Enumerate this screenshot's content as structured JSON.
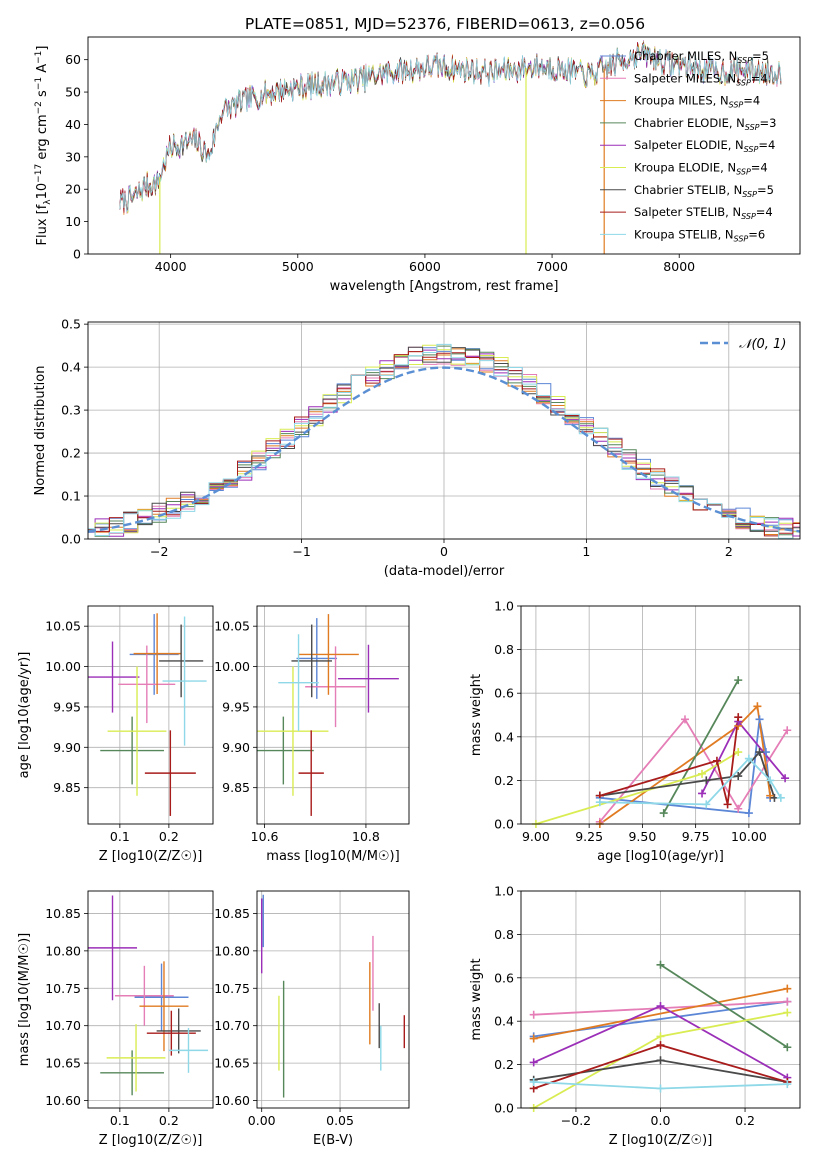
{
  "figure": {
    "title": "PLATE=0851, MJD=52376, FIBERID=0613, z=0.056"
  },
  "models": [
    {
      "name": "Chabrier MILES",
      "nssp": 5,
      "color": "#5c86d6"
    },
    {
      "name": "Salpeter MILES",
      "nssp": 4,
      "color": "#e57db6"
    },
    {
      "name": "Kroupa MILES",
      "nssp": 4,
      "color": "#e07b22"
    },
    {
      "name": "Chabrier ELODIE",
      "nssp": 3,
      "color": "#56875a"
    },
    {
      "name": "Salpeter ELODIE",
      "nssp": 4,
      "color": "#9b2fb8"
    },
    {
      "name": "Kroupa ELODIE",
      "nssp": 4,
      "color": "#d9ec52"
    },
    {
      "name": "Chabrier STELIB",
      "nssp": 5,
      "color": "#4a4a4a"
    },
    {
      "name": "Salpeter STELIB",
      "nssp": 4,
      "color": "#a81c1c"
    },
    {
      "name": "Kroupa STELIB",
      "nssp": 6,
      "color": "#8ed8e8"
    }
  ],
  "chart_data": [
    {
      "id": "spectrum",
      "type": "line",
      "title": "PLATE=0851, MJD=52376, FIBERID=0613, z=0.056",
      "xlabel": "wavelength [Angstrom, rest frame]",
      "ylabel": "Flux [f_λ 10^-17 erg cm^-2 s^-1 A^-1]",
      "xlim": [
        3350,
        8950
      ],
      "ylim": [
        0,
        67
      ],
      "xticks": [
        4000,
        5000,
        6000,
        7000,
        8000
      ],
      "yticks": [
        0,
        10,
        20,
        30,
        40,
        50,
        60
      ],
      "grid": false,
      "legend": "right",
      "envelope": {
        "x": [
          3600,
          3700,
          3800,
          3900,
          3950,
          4000,
          4100,
          4200,
          4300,
          4400,
          4500,
          4700,
          4900,
          5100,
          5300,
          5500,
          5700,
          5900,
          6100,
          6300,
          6500,
          6700,
          6900,
          7100,
          7300,
          7500,
          7700,
          7900,
          8100,
          8300,
          8500,
          8700,
          8800
        ],
        "y": [
          16,
          17,
          21,
          22,
          28,
          33,
          34,
          35,
          30,
          44,
          46,
          49,
          51,
          52,
          53,
          54,
          56,
          57,
          58,
          57,
          56,
          57,
          58,
          57,
          55,
          59,
          62,
          59,
          58,
          56,
          57,
          56,
          56
        ]
      },
      "dips": [
        {
          "x": 3915,
          "y": 0,
          "series": "Kroupa ELODIE"
        },
        {
          "x": 6795,
          "y": 0,
          "series": "Kroupa ELODIE"
        },
        {
          "x": 7410,
          "y": 0,
          "series": "Kroupa MILES"
        }
      ]
    },
    {
      "id": "residuals",
      "type": "line",
      "xlabel": "(data-model)/error",
      "ylabel": "Normed distribution",
      "xlim": [
        -2.5,
        2.5
      ],
      "ylim": [
        0,
        0.505
      ],
      "xticks": [
        -2,
        -1,
        0,
        1,
        2
      ],
      "yticks": [
        0.0,
        0.1,
        0.2,
        0.3,
        0.4,
        0.5
      ],
      "grid": true,
      "legend": "top-right",
      "reference_label": "𝒩(0, 1)",
      "reference_color": "#5b8fd4",
      "bin_width": 0.1
    },
    {
      "id": "age-vs-z",
      "type": "scatter",
      "xlabel": "Z [log10(Z/Z☉)]",
      "ylabel": "age [log10(age/yr)]",
      "xlim": [
        0.035,
        0.29
      ],
      "ylim": [
        9.805,
        10.075
      ],
      "xticks": [
        0.1,
        0.2
      ],
      "yticks": [
        9.85,
        9.9,
        9.95,
        10.0,
        10.05
      ],
      "grid": true,
      "points": [
        {
          "series": "Chabrier MILES",
          "x": 0.17,
          "y": 10.015,
          "xerr": 0.05,
          "yerr": 0.05
        },
        {
          "series": "Salpeter MILES",
          "x": 0.155,
          "y": 9.978,
          "xerr": 0.058,
          "yerr": 0.048
        },
        {
          "series": "Kroupa MILES",
          "x": 0.176,
          "y": 10.016,
          "xerr": 0.048,
          "yerr": 0.05
        },
        {
          "series": "Chabrier ELODIE",
          "x": 0.125,
          "y": 9.896,
          "xerr": 0.065,
          "yerr": 0.042
        },
        {
          "series": "Salpeter ELODIE",
          "x": 0.085,
          "y": 9.987,
          "xerr": 0.055,
          "yerr": 0.044
        },
        {
          "series": "Kroupa ELODIE",
          "x": 0.135,
          "y": 9.92,
          "xerr": 0.06,
          "yerr": 0.08
        },
        {
          "series": "Chabrier STELIB",
          "x": 0.225,
          "y": 10.007,
          "xerr": 0.045,
          "yerr": 0.045
        },
        {
          "series": "Salpeter STELIB",
          "x": 0.203,
          "y": 9.868,
          "xerr": 0.052,
          "yerr": 0.053
        },
        {
          "series": "Kroupa STELIB",
          "x": 0.232,
          "y": 9.982,
          "xerr": 0.045,
          "yerr": 0.08
        }
      ]
    },
    {
      "id": "age-vs-mass",
      "type": "scatter",
      "xlabel": "mass [log10(M/M☉)]",
      "ylabel": "",
      "xlim": [
        10.585,
        10.885
      ],
      "ylim": [
        9.805,
        10.075
      ],
      "xticks": [
        10.6,
        10.8
      ],
      "yticks": [
        9.85,
        9.9,
        9.95,
        10.0,
        10.05
      ],
      "grid": true,
      "points": [
        {
          "series": "Chabrier MILES",
          "x": 10.703,
          "y": 10.01,
          "xerr": 0.04,
          "yerr": 0.05
        },
        {
          "series": "Salpeter MILES",
          "x": 10.74,
          "y": 9.975,
          "xerr": 0.06,
          "yerr": 0.05
        },
        {
          "series": "Kroupa MILES",
          "x": 10.726,
          "y": 10.015,
          "xerr": 0.06,
          "yerr": 0.05
        },
        {
          "series": "Chabrier ELODIE",
          "x": 10.637,
          "y": 9.896,
          "xerr": 0.06,
          "yerr": 0.042
        },
        {
          "series": "Salpeter ELODIE",
          "x": 10.805,
          "y": 9.985,
          "xerr": 0.06,
          "yerr": 0.042
        },
        {
          "series": "Kroupa ELODIE",
          "x": 10.656,
          "y": 9.92,
          "xerr": 0.07,
          "yerr": 0.08
        },
        {
          "series": "Chabrier STELIB",
          "x": 10.693,
          "y": 10.007,
          "xerr": 0.04,
          "yerr": 0.045
        },
        {
          "series": "Salpeter STELIB",
          "x": 10.692,
          "y": 9.868,
          "xerr": 0.025,
          "yerr": 0.053
        },
        {
          "series": "Kroupa STELIB",
          "x": 10.667,
          "y": 9.98,
          "xerr": 0.04,
          "yerr": 0.06
        }
      ]
    },
    {
      "id": "weight-vs-age",
      "type": "line",
      "xlabel": "age [log10(age/yr)]",
      "ylabel": "mass weight",
      "xlim": [
        8.93,
        10.24
      ],
      "ylim": [
        0,
        1
      ],
      "xticks": [
        9.0,
        9.25,
        9.5,
        9.75,
        10.0
      ],
      "yticks": [
        0.0,
        0.2,
        0.4,
        0.6,
        0.8,
        1.0
      ],
      "grid": true,
      "series": [
        {
          "name": "Chabrier MILES",
          "x": [
            9.3,
            10.0,
            10.05,
            10.08,
            10.1
          ],
          "y": [
            0.12,
            0.05,
            0.48,
            0.33,
            0.12
          ]
        },
        {
          "name": "Salpeter MILES",
          "x": [
            9.3,
            9.7,
            9.95,
            10.18
          ],
          "y": [
            0.01,
            0.48,
            0.07,
            0.43
          ]
        },
        {
          "name": "Kroupa MILES",
          "x": [
            9.3,
            9.95,
            10.04,
            10.1
          ],
          "y": [
            0.0,
            0.45,
            0.54,
            0.13
          ]
        },
        {
          "name": "Chabrier ELODIE",
          "x": [
            9.6,
            9.95
          ],
          "y": [
            0.05,
            0.66
          ]
        },
        {
          "name": "Salpeter ELODIE",
          "x": [
            9.78,
            9.95,
            10.17
          ],
          "y": [
            0.14,
            0.47,
            0.21
          ]
        },
        {
          "name": "Kroupa ELODIE",
          "x": [
            9.0,
            9.78,
            9.95
          ],
          "y": [
            0.0,
            0.23,
            0.33
          ]
        },
        {
          "name": "Chabrier STELIB",
          "x": [
            9.3,
            9.8,
            9.95,
            10.05,
            10.12
          ],
          "y": [
            0.13,
            0.2,
            0.22,
            0.33,
            0.12
          ]
        },
        {
          "name": "Salpeter STELIB",
          "x": [
            9.3,
            9.85,
            9.9,
            9.95
          ],
          "y": [
            0.13,
            0.29,
            0.09,
            0.49
          ]
        },
        {
          "name": "Kroupa STELIB",
          "x": [
            9.3,
            9.8,
            10.0,
            10.1,
            10.15
          ],
          "y": [
            0.1,
            0.09,
            0.3,
            0.2,
            0.12
          ]
        }
      ]
    },
    {
      "id": "mass-vs-z",
      "type": "scatter",
      "xlabel": "Z [log10(Z/Z☉)]",
      "ylabel": "mass [log10(M/M☉)]",
      "xlim": [
        0.035,
        0.29
      ],
      "ylim": [
        10.59,
        10.88
      ],
      "xticks": [
        0.1,
        0.2
      ],
      "yticks": [
        10.6,
        10.65,
        10.7,
        10.75,
        10.8,
        10.85
      ],
      "grid": true,
      "points": [
        {
          "series": "Chabrier MILES",
          "x": 0.185,
          "y": 10.738,
          "xerr": 0.055,
          "yerr": 0.045
        },
        {
          "series": "Salpeter MILES",
          "x": 0.15,
          "y": 10.74,
          "xerr": 0.06,
          "yerr": 0.04
        },
        {
          "series": "Kroupa MILES",
          "x": 0.19,
          "y": 10.726,
          "xerr": 0.05,
          "yerr": 0.06
        },
        {
          "series": "Chabrier ELODIE",
          "x": 0.125,
          "y": 10.637,
          "xerr": 0.065,
          "yerr": 0.03
        },
        {
          "series": "Salpeter ELODIE",
          "x": 0.085,
          "y": 10.804,
          "xerr": 0.05,
          "yerr": 0.07
        },
        {
          "series": "Kroupa ELODIE",
          "x": 0.133,
          "y": 10.657,
          "xerr": 0.06,
          "yerr": 0.045
        },
        {
          "series": "Chabrier STELIB",
          "x": 0.22,
          "y": 10.693,
          "xerr": 0.045,
          "yerr": 0.03
        },
        {
          "series": "Salpeter STELIB",
          "x": 0.205,
          "y": 10.69,
          "xerr": 0.05,
          "yerr": 0.03
        },
        {
          "series": "Kroupa STELIB",
          "x": 0.24,
          "y": 10.667,
          "xerr": 0.04,
          "yerr": 0.03
        }
      ]
    },
    {
      "id": "mass-vs-ebv",
      "type": "scatter",
      "xlabel": "E(B-V)",
      "ylabel": "",
      "xlim": [
        -0.003,
        0.094
      ],
      "ylim": [
        10.59,
        10.88
      ],
      "xticks": [
        0.0,
        0.05
      ],
      "yticks": [
        10.6,
        10.65,
        10.7,
        10.75,
        10.8,
        10.85
      ],
      "grid": true,
      "points": [
        {
          "series": "Chabrier MILES",
          "x": 0.001,
          "y": 10.84,
          "xerr": 0,
          "yerr": 0.035
        },
        {
          "series": "Salpeter MILES",
          "x": 0.071,
          "y": 10.77,
          "xerr": 0,
          "yerr": 0.05
        },
        {
          "series": "Kroupa MILES",
          "x": 0.069,
          "y": 10.73,
          "xerr": 0,
          "yerr": 0.055
        },
        {
          "series": "Chabrier ELODIE",
          "x": 0.014,
          "y": 10.682,
          "xerr": 0,
          "yerr": 0.078
        },
        {
          "series": "Salpeter ELODIE",
          "x": 0.0,
          "y": 10.82,
          "xerr": 0,
          "yerr": 0.05
        },
        {
          "series": "Kroupa ELODIE",
          "x": 0.011,
          "y": 10.69,
          "xerr": 0,
          "yerr": 0.05
        },
        {
          "series": "Chabrier STELIB",
          "x": 0.075,
          "y": 10.7,
          "xerr": 0,
          "yerr": 0.03
        },
        {
          "series": "Salpeter STELIB",
          "x": 0.091,
          "y": 10.692,
          "xerr": 0,
          "yerr": 0.022
        },
        {
          "series": "Kroupa STELIB",
          "x": 0.076,
          "y": 10.67,
          "xerr": 0,
          "yerr": 0.03
        }
      ]
    },
    {
      "id": "weight-vs-z",
      "type": "line",
      "xlabel": "Z [log10(Z/Z☉)]",
      "ylabel": "mass weight",
      "xlim": [
        -0.33,
        0.33
      ],
      "ylim": [
        0,
        1
      ],
      "xticks": [
        -0.2,
        0.0,
        0.2
      ],
      "yticks": [
        0.0,
        0.2,
        0.4,
        0.6,
        0.8,
        1.0
      ],
      "grid": true,
      "series": [
        {
          "name": "Chabrier MILES",
          "x": [
            -0.3,
            0.3
          ],
          "y": [
            0.33,
            0.49
          ]
        },
        {
          "name": "Salpeter MILES",
          "x": [
            -0.3,
            0.3
          ],
          "y": [
            0.43,
            0.49
          ]
        },
        {
          "name": "Kroupa MILES",
          "x": [
            -0.3,
            0.3
          ],
          "y": [
            0.32,
            0.55
          ]
        },
        {
          "name": "Chabrier ELODIE",
          "x": [
            0.0,
            0.3
          ],
          "y": [
            0.66,
            0.28
          ]
        },
        {
          "name": "Salpeter ELODIE",
          "x": [
            -0.3,
            0.0,
            0.3
          ],
          "y": [
            0.21,
            0.47,
            0.14
          ]
        },
        {
          "name": "Kroupa ELODIE",
          "x": [
            -0.3,
            0.0,
            0.3
          ],
          "y": [
            0.0,
            0.33,
            0.44
          ]
        },
        {
          "name": "Chabrier STELIB",
          "x": [
            -0.3,
            0.0,
            0.3
          ],
          "y": [
            0.13,
            0.22,
            0.12
          ]
        },
        {
          "name": "Salpeter STELIB",
          "x": [
            -0.3,
            0.0,
            0.3
          ],
          "y": [
            0.09,
            0.29,
            0.12
          ]
        },
        {
          "name": "Kroupa STELIB",
          "x": [
            -0.3,
            0.0,
            0.3
          ],
          "y": [
            0.12,
            0.09,
            0.11
          ]
        }
      ]
    }
  ]
}
